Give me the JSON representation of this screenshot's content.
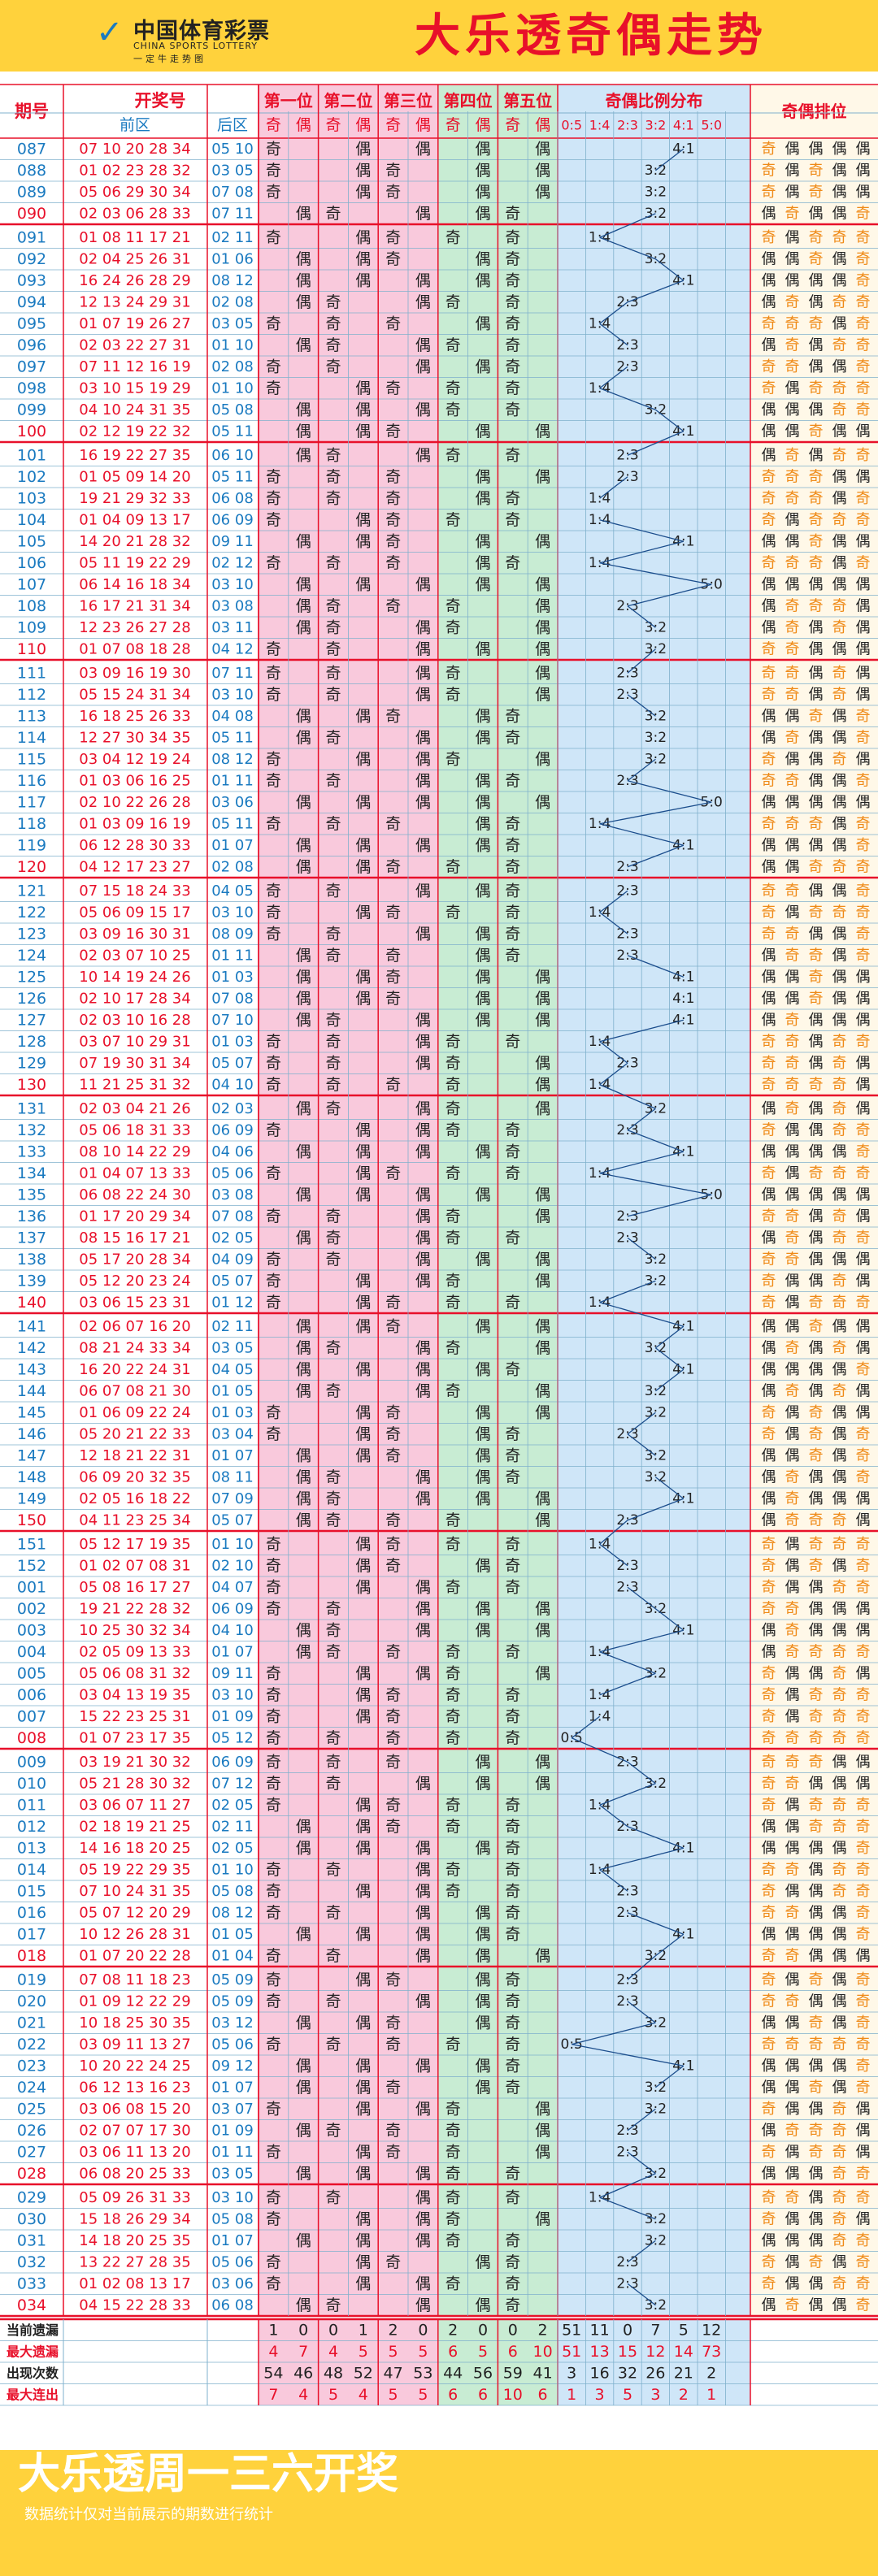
{
  "header": {
    "logo_cn": "中国体育彩票",
    "logo_en": "CHINA SPORTS LOTTERY",
    "logo_slogan": "一定牛走势图",
    "title": "大乐透奇偶走势"
  },
  "footer": {
    "slogan": "大乐透周一三六开奖",
    "note": "数据统计仅对当前展示的期数进行统计"
  },
  "colors": {
    "header_bg": "#ffd23c",
    "pink": "#f9c9dc",
    "green": "#c8ecd3",
    "blue": "#cfe6f8",
    "grid": "#7fb0cc",
    "red": "#e8102a",
    "blue_text": "#1a7ac0",
    "orange": "#ef8a17"
  },
  "chart_data": {
    "type": "table",
    "columns": {
      "issue": "期号",
      "draw": "开奖号",
      "front": "前区",
      "back": "后区",
      "positions": [
        "第一位",
        "第二位",
        "第三位",
        "第四位",
        "第五位"
      ],
      "odd": "奇",
      "even": "偶",
      "ratio": "奇偶比例分布",
      "ratio_labels": [
        "0:5",
        "1:4",
        "2:3",
        "3:2",
        "4:1",
        "5:0"
      ],
      "order": "奇偶排位"
    },
    "rows": [
      [
        "087",
        "07 10 20 28 34",
        "05 10"
      ],
      [
        "088",
        "01 02 23 28 32",
        "03 05"
      ],
      [
        "089",
        "05 06 29 30 34",
        "07 08"
      ],
      [
        "090",
        "02 03 06 28 33",
        "07 11"
      ],
      [
        "091",
        "01 08 11 17 21",
        "02 11"
      ],
      [
        "092",
        "02 04 25 26 31",
        "01 06"
      ],
      [
        "093",
        "16 24 26 28 29",
        "08 12"
      ],
      [
        "094",
        "12 13 24 29 31",
        "02 08"
      ],
      [
        "095",
        "01 07 19 26 27",
        "03 05"
      ],
      [
        "096",
        "02 03 22 27 31",
        "01 10"
      ],
      [
        "097",
        "07 11 12 16 19",
        "02 08"
      ],
      [
        "098",
        "03 10 15 19 29",
        "01 10"
      ],
      [
        "099",
        "04 10 24 31 35",
        "05 08"
      ],
      [
        "100",
        "02 12 19 22 32",
        "05 11"
      ],
      [
        "101",
        "16 19 22 27 35",
        "06 10"
      ],
      [
        "102",
        "01 05 09 14 20",
        "05 11"
      ],
      [
        "103",
        "19 21 29 32 33",
        "06 08"
      ],
      [
        "104",
        "01 04 09 13 17",
        "06 09"
      ],
      [
        "105",
        "14 20 21 28 32",
        "09 11"
      ],
      [
        "106",
        "05 11 19 22 29",
        "02 12"
      ],
      [
        "107",
        "06 14 16 18 34",
        "03 10"
      ],
      [
        "108",
        "16 17 21 31 34",
        "03 08"
      ],
      [
        "109",
        "12 23 26 27 28",
        "03 11"
      ],
      [
        "110",
        "01 07 08 18 28",
        "04 12"
      ],
      [
        "111",
        "03 09 16 19 30",
        "07 11"
      ],
      [
        "112",
        "05 15 24 31 34",
        "03 10"
      ],
      [
        "113",
        "16 18 25 26 33",
        "04 08"
      ],
      [
        "114",
        "12 27 30 34 35",
        "05 11"
      ],
      [
        "115",
        "03 04 12 19 24",
        "08 12"
      ],
      [
        "116",
        "01 03 06 16 25",
        "01 11"
      ],
      [
        "117",
        "02 10 22 26 28",
        "03 06"
      ],
      [
        "118",
        "01 03 09 16 19",
        "05 11"
      ],
      [
        "119",
        "06 12 28 30 33",
        "01 07"
      ],
      [
        "120",
        "04 12 17 23 27",
        "02 08"
      ],
      [
        "121",
        "07 15 18 24 33",
        "04 05"
      ],
      [
        "122",
        "05 06 09 15 17",
        "03 10"
      ],
      [
        "123",
        "03 09 16 30 31",
        "08 09"
      ],
      [
        "124",
        "02 03 07 10 25",
        "01 11"
      ],
      [
        "125",
        "10 14 19 24 26",
        "01 03"
      ],
      [
        "126",
        "02 10 17 28 34",
        "07 08"
      ],
      [
        "127",
        "02 03 10 16 28",
        "07 10"
      ],
      [
        "128",
        "03 07 10 29 31",
        "01 03"
      ],
      [
        "129",
        "07 19 30 31 34",
        "05 07"
      ],
      [
        "130",
        "11 21 25 31 32",
        "04 10"
      ],
      [
        "131",
        "02 03 04 21 26",
        "02 03"
      ],
      [
        "132",
        "05 06 18 31 33",
        "06 09"
      ],
      [
        "133",
        "08 10 14 22 29",
        "04 06"
      ],
      [
        "134",
        "01 04 07 13 33",
        "05 06"
      ],
      [
        "135",
        "06 08 22 24 30",
        "03 08"
      ],
      [
        "136",
        "01 17 20 29 34",
        "07 08"
      ],
      [
        "137",
        "08 15 16 17 21",
        "02 05"
      ],
      [
        "138",
        "05 17 20 28 34",
        "04 09"
      ],
      [
        "139",
        "05 12 20 23 24",
        "05 07"
      ],
      [
        "140",
        "03 06 15 23 31",
        "01 12"
      ],
      [
        "141",
        "02 06 07 16 20",
        "02 11"
      ],
      [
        "142",
        "08 21 24 33 34",
        "03 05"
      ],
      [
        "143",
        "16 20 22 24 31",
        "04 05"
      ],
      [
        "144",
        "06 07 08 21 30",
        "01 05"
      ],
      [
        "145",
        "01 06 09 22 24",
        "01 03"
      ],
      [
        "146",
        "05 20 21 22 33",
        "03 04"
      ],
      [
        "147",
        "12 18 21 22 31",
        "01 07"
      ],
      [
        "148",
        "06 09 20 32 35",
        "08 11"
      ],
      [
        "149",
        "02 05 16 18 22",
        "07 09"
      ],
      [
        "150",
        "04 11 23 25 34",
        "05 07"
      ],
      [
        "151",
        "05 12 17 19 35",
        "01 10"
      ],
      [
        "152",
        "01 02 07 08 31",
        "02 10"
      ],
      [
        "001",
        "05 08 16 17 27",
        "04 07"
      ],
      [
        "002",
        "19 21 22 28 32",
        "06 09"
      ],
      [
        "003",
        "10 25 30 32 34",
        "04 10"
      ],
      [
        "004",
        "02 05 09 13 33",
        "01 07"
      ],
      [
        "005",
        "05 06 08 31 32",
        "09 11"
      ],
      [
        "006",
        "03 04 13 19 35",
        "03 10"
      ],
      [
        "007",
        "15 22 23 25 31",
        "01 09"
      ],
      [
        "008",
        "01 07 23 17 35",
        "05 12"
      ],
      [
        "009",
        "03 19 21 30 32",
        "06 09"
      ],
      [
        "010",
        "05 21 28 30 32",
        "07 12"
      ],
      [
        "011",
        "03 06 07 11 27",
        "02 05"
      ],
      [
        "012",
        "02 18 19 21 25",
        "02 11"
      ],
      [
        "013",
        "14 16 18 20 25",
        "02 05"
      ],
      [
        "014",
        "05 19 22 29 35",
        "01 10"
      ],
      [
        "015",
        "07 10 24 31 35",
        "05 08"
      ],
      [
        "016",
        "05 07 12 20 29",
        "08 12"
      ],
      [
        "017",
        "10 12 26 28 31",
        "01 05"
      ],
      [
        "018",
        "01 07 20 22 28",
        "01 04"
      ],
      [
        "019",
        "07 08 11 18 23",
        "05 09"
      ],
      [
        "020",
        "01 09 12 22 29",
        "05 09"
      ],
      [
        "021",
        "10 18 25 30 35",
        "03 12"
      ],
      [
        "022",
        "03 09 11 13 27",
        "05 06"
      ],
      [
        "023",
        "10 20 22 24 25",
        "09 12"
      ],
      [
        "024",
        "06 12 13 16 23",
        "01 07"
      ],
      [
        "025",
        "03 06 08 15 20",
        "03 07"
      ],
      [
        "026",
        "02 07 07 17 30",
        "01 09"
      ],
      [
        "027",
        "03 06 11 13 20",
        "01 11"
      ],
      [
        "028",
        "06 08 20 25 33",
        "03 05"
      ],
      [
        "029",
        "05 09 26 31 33",
        "03 10"
      ],
      [
        "030",
        "15 18 26 29 34",
        "05 08"
      ],
      [
        "031",
        "14 18 20 25 35",
        "01 07"
      ],
      [
        "032",
        "13 22 27 28 35",
        "05 06"
      ],
      [
        "033",
        "01 02 08 13 17",
        "03 06"
      ],
      [
        "034",
        "04 15 22 28 33",
        "06 08"
      ]
    ],
    "stats": {
      "labels": [
        "当前遗漏",
        "最大遗漏",
        "出现次数",
        "最大连出"
      ],
      "rows": [
        [
          "1",
          "0",
          "0",
          "1",
          "2",
          "0",
          "2",
          "0",
          "0",
          "2",
          "51",
          "11",
          "0",
          "7",
          "5",
          "12"
        ],
        [
          "4",
          "7",
          "4",
          "5",
          "5",
          "5",
          "6",
          "5",
          "6",
          "10",
          "51",
          "13",
          "15",
          "12",
          "14",
          "73"
        ],
        [
          "54",
          "46",
          "48",
          "52",
          "47",
          "53",
          "44",
          "56",
          "59",
          "41",
          "3",
          "16",
          "32",
          "26",
          "21",
          "2"
        ],
        [
          "7",
          "4",
          "5",
          "4",
          "5",
          "5",
          "6",
          "6",
          "10",
          "6",
          "1",
          "3",
          "5",
          "3",
          "2",
          "1"
        ]
      ]
    }
  }
}
